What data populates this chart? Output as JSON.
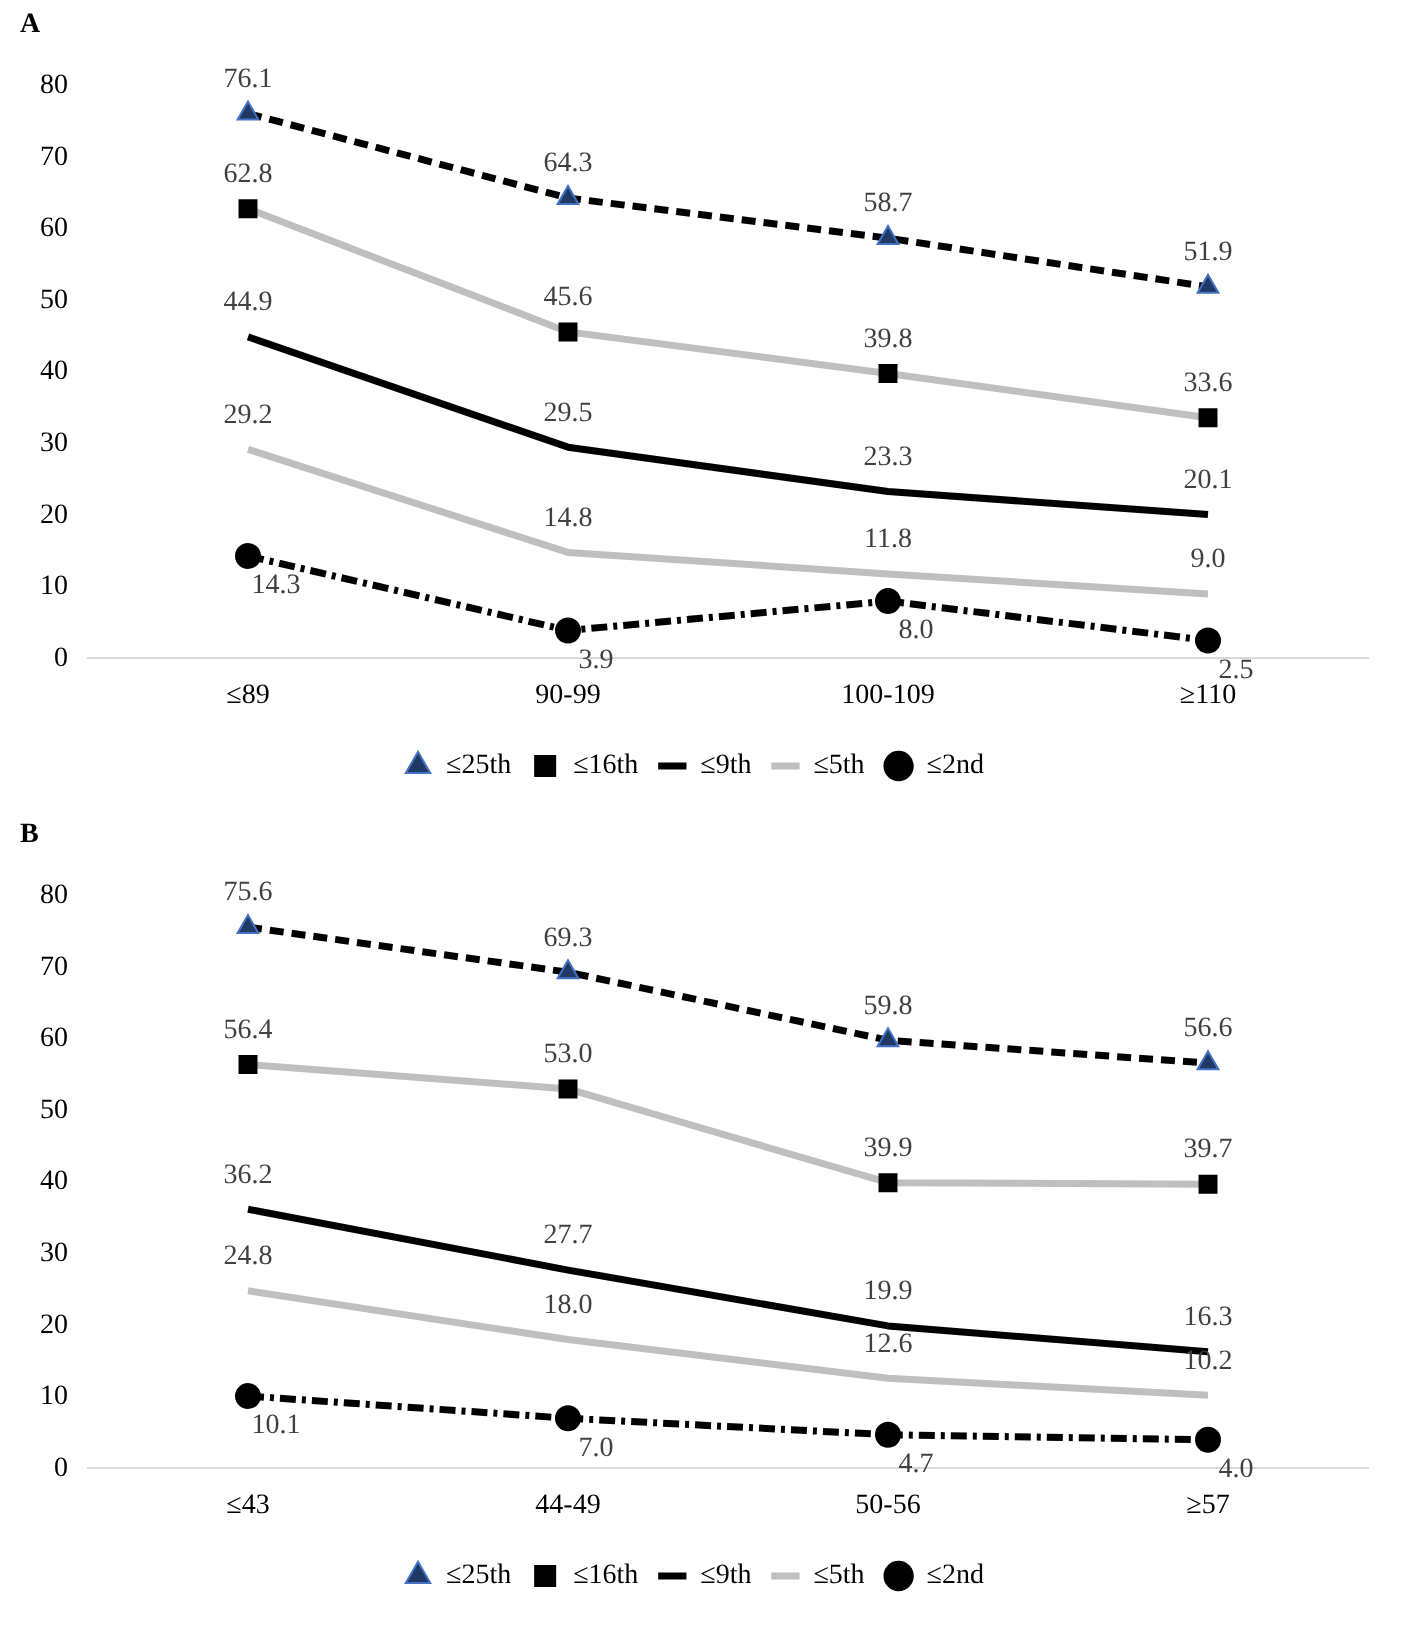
{
  "chart_data": [
    {
      "type": "line",
      "title": "A",
      "categories": [
        "≤89",
        "90-99",
        "100-109",
        "≥110"
      ],
      "ylim": [
        0,
        80
      ],
      "yticks": [
        0,
        10,
        20,
        30,
        40,
        50,
        60,
        70,
        80
      ],
      "grid": false,
      "legend": "bottom",
      "series": [
        {
          "name": "≤25th",
          "color": "#000000",
          "marker": "triangle",
          "line_style": "dashed",
          "values": [
            76.1,
            64.3,
            58.7,
            51.9
          ],
          "value_labels": [
            "76.1",
            "64.3",
            "58.7",
            "51.9"
          ]
        },
        {
          "name": "≤16th",
          "color": "#bfbfbf",
          "marker": "square",
          "line_style": "solid",
          "values": [
            62.8,
            45.6,
            39.8,
            33.6
          ],
          "value_labels": [
            "62.8",
            "45.6",
            "39.8",
            "33.6"
          ]
        },
        {
          "name": "≤9th",
          "color": "#000000",
          "marker": "none",
          "line_style": "solid",
          "values": [
            44.9,
            29.5,
            23.3,
            20.1
          ],
          "value_labels": [
            "44.9",
            "29.5",
            "23.3",
            "20.1"
          ]
        },
        {
          "name": "≤5th",
          "color": "#bfbfbf",
          "marker": "none",
          "line_style": "solid",
          "values": [
            29.2,
            14.8,
            11.8,
            9.0
          ],
          "value_labels": [
            "29.2",
            "14.8",
            "11.8",
            "9.0"
          ]
        },
        {
          "name": "≤2nd",
          "color": "#000000",
          "marker": "circle",
          "line_style": "dashdot",
          "values": [
            14.3,
            3.9,
            8.0,
            2.5
          ],
          "value_labels": [
            "14.3",
            "3.9",
            "8.0",
            "2.5"
          ]
        }
      ]
    },
    {
      "type": "line",
      "title": "B",
      "categories": [
        "≤43",
        "44-49",
        "50-56",
        "≥57"
      ],
      "ylim": [
        0,
        80
      ],
      "yticks": [
        0,
        10,
        20,
        30,
        40,
        50,
        60,
        70,
        80
      ],
      "grid": false,
      "legend": "bottom",
      "series": [
        {
          "name": "≤25th",
          "color": "#000000",
          "marker": "triangle",
          "line_style": "dashed",
          "values": [
            75.6,
            69.3,
            59.8,
            56.6
          ],
          "value_labels": [
            "75.6",
            "69.3",
            "59.8",
            "56.6"
          ]
        },
        {
          "name": "≤16th",
          "color": "#bfbfbf",
          "marker": "square",
          "line_style": "solid",
          "values": [
            56.4,
            53.0,
            39.9,
            39.7
          ],
          "value_labels": [
            "56.4",
            "53.0",
            "39.9",
            "39.7"
          ]
        },
        {
          "name": "≤9th",
          "color": "#000000",
          "marker": "none",
          "line_style": "solid",
          "values": [
            36.2,
            27.7,
            19.9,
            16.3
          ],
          "value_labels": [
            "36.2",
            "27.7",
            "19.9",
            "16.3"
          ]
        },
        {
          "name": "≤5th",
          "color": "#bfbfbf",
          "marker": "none",
          "line_style": "solid",
          "values": [
            24.8,
            18.0,
            12.6,
            10.2
          ],
          "value_labels": [
            "24.8",
            "18.0",
            "12.6",
            "10.2"
          ]
        },
        {
          "name": "≤2nd",
          "color": "#000000",
          "marker": "circle",
          "line_style": "dashdot",
          "values": [
            10.1,
            7.0,
            4.7,
            4.0
          ],
          "value_labels": [
            "10.1",
            "7.0",
            "4.7",
            "4.0"
          ]
        }
      ]
    }
  ]
}
